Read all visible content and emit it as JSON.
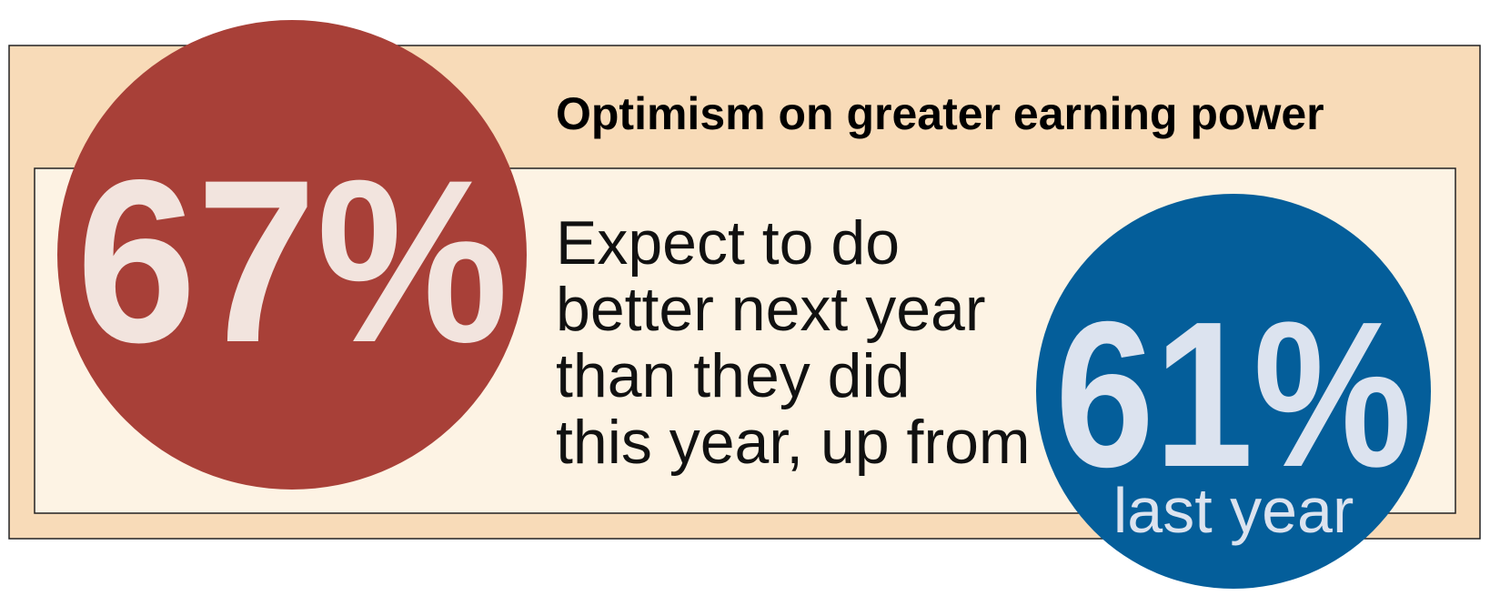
{
  "title": "Optimism on greater earning power",
  "current_stat": "67%",
  "description_lines": [
    "Expect to do",
    "better next year",
    "than they did",
    "this year, up from"
  ],
  "previous_stat": "61%",
  "previous_label": "last year"
}
